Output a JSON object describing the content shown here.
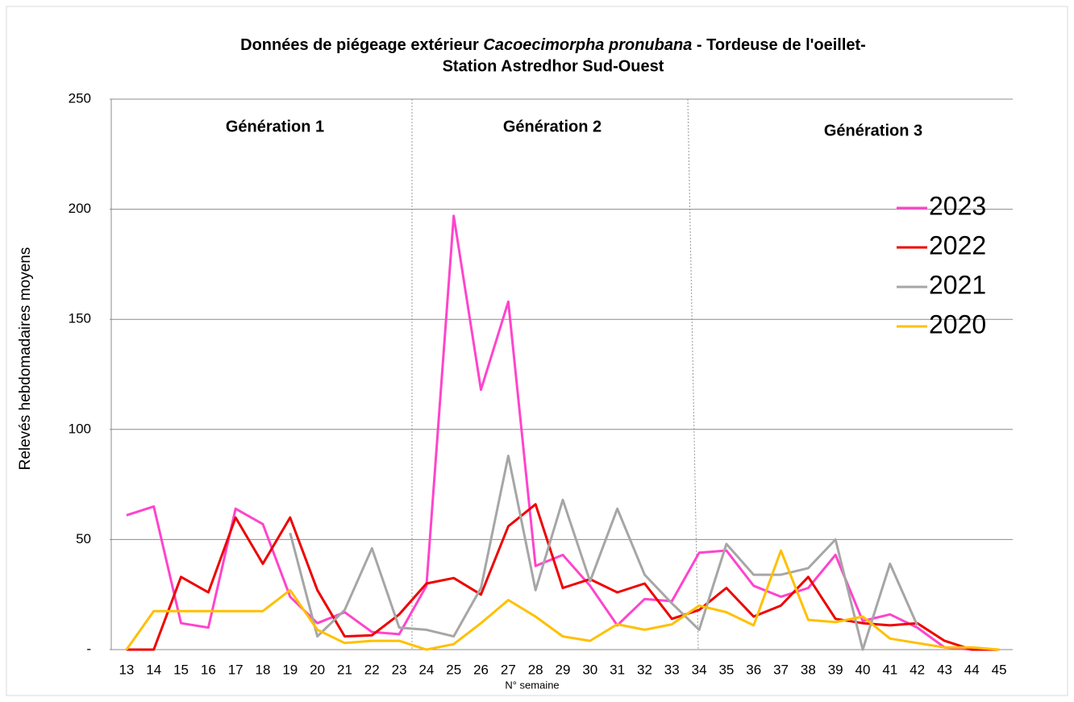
{
  "chart_data": {
    "type": "line",
    "title": [
      "Données de piégeage extérieur",
      "Cacoecimorpha pronubana",
      "- Tordeuse de l'oeillet-"
    ],
    "subtitle": "Station Astredhor Sud-Ouest",
    "x_label": "N° semaine",
    "y_label": "Relevés hebdomadaires moyens",
    "annotations": [
      "Génération 1",
      "Génération 2",
      "Génération 3"
    ],
    "categories": [
      "13",
      "14",
      "15",
      "16",
      "17",
      "18",
      "19",
      "20",
      "21",
      "22",
      "23",
      "24",
      "25",
      "26",
      "27",
      "28",
      "29",
      "30",
      "31",
      "32",
      "33",
      "34",
      "35",
      "36",
      "37",
      "38",
      "39",
      "40",
      "41",
      "42",
      "43",
      "44",
      "45"
    ],
    "series": [
      {
        "name": "2023",
        "color": "#ff44cc",
        "values": [
          61,
          65,
          12,
          10,
          64,
          57,
          24,
          12,
          17,
          8,
          7,
          29,
          197,
          118,
          158,
          38,
          43,
          29,
          11,
          23,
          22,
          44,
          45,
          29,
          24,
          28,
          43,
          13,
          16,
          10,
          1,
          0,
          0
        ]
      },
      {
        "name": "2022",
        "color": "#ee0000",
        "values": [
          0,
          0,
          33,
          26,
          60,
          39,
          60,
          27,
          6,
          6.5,
          16,
          30,
          32.5,
          25,
          56,
          66,
          28,
          32,
          26,
          30,
          14,
          18,
          28,
          15,
          20,
          33,
          14,
          12,
          11,
          12,
          4,
          0,
          0
        ]
      },
      {
        "name": "2021",
        "color": "#a6a6a6",
        "values": [
          null,
          null,
          null,
          null,
          null,
          null,
          53,
          6,
          18,
          46,
          10,
          9,
          6,
          28,
          88,
          27,
          68,
          31,
          64,
          34,
          21,
          9,
          48,
          34,
          34,
          37,
          50,
          0,
          39,
          11,
          null,
          null,
          null
        ]
      },
      {
        "name": "2020",
        "color": "#ffc000",
        "values": [
          0,
          17.5,
          17.5,
          17.5,
          17.5,
          17.5,
          27,
          9,
          3,
          4,
          4,
          0,
          2.5,
          12,
          22.5,
          15,
          6,
          4,
          11.5,
          9,
          11.5,
          20,
          17,
          11,
          45,
          13.5,
          12.5,
          15,
          5,
          3,
          1,
          1,
          0
        ]
      }
    ],
    "ylim": [
      0,
      250
    ],
    "yticks": [
      {
        "value": 0,
        "label": "-"
      },
      50,
      100,
      150,
      200,
      250
    ],
    "grid": true,
    "legend": "right"
  }
}
